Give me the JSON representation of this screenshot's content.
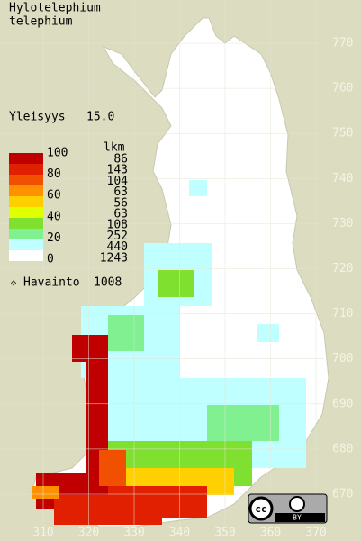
{
  "title": [
    "Hylotelephium",
    "telephium"
  ],
  "frequency": {
    "label": "Yleisyys",
    "value": "15.0"
  },
  "legend": {
    "count_header": "lkm",
    "scale": [
      "100",
      "80",
      "60",
      "40",
      "20",
      "0"
    ],
    "counts": [
      "86",
      "143",
      "104",
      "63",
      "56",
      "63",
      "108",
      "252",
      "440",
      "1243"
    ],
    "colors": [
      "#c00000",
      "#e02000",
      "#f05000",
      "#ff9000",
      "#ffd000",
      "#e0ff00",
      "#80e030",
      "#80f090",
      "#c0ffff",
      "#ffffff"
    ]
  },
  "observations": {
    "label": "Havainto",
    "value": "1008"
  },
  "grid": {
    "y_labels": [
      "770",
      "760",
      "750",
      "740",
      "730",
      "720",
      "710",
      "700",
      "690",
      "680",
      "670"
    ],
    "x_labels": [
      "310",
      "320",
      "330",
      "340",
      "350",
      "360",
      "370"
    ]
  },
  "license": {
    "badge": "BY"
  }
}
